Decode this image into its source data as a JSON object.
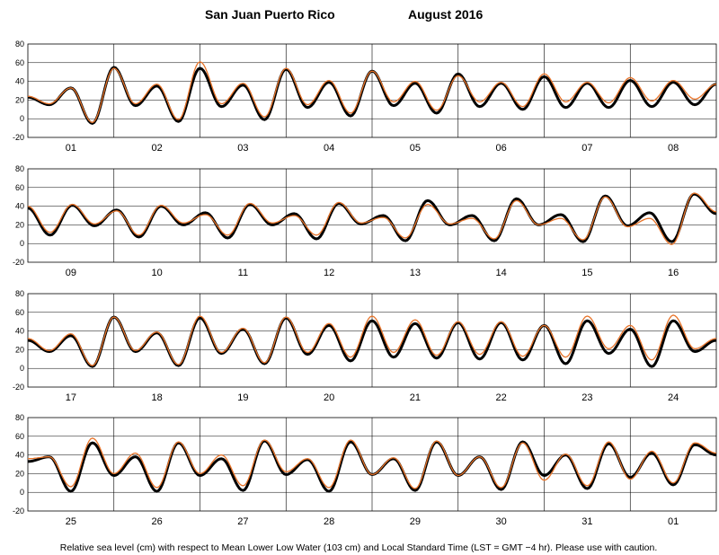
{
  "header": {
    "location": "San Juan Puerto Rico",
    "period": "August   2016"
  },
  "footer": {
    "note": "Relative sea level (cm) with respect to Mean Lower Low Water (103 cm) and Local Standard Time (LST = GMT −4 hr). Please use with caution."
  },
  "colors": {
    "observed": "#000000",
    "predicted": "#e8742a",
    "grid": "#000000"
  },
  "chart_data": [
    {
      "type": "line",
      "x_label_days": [
        "01",
        "02",
        "03",
        "04",
        "05",
        "06",
        "07",
        "08"
      ],
      "ylim": [
        -20,
        80
      ],
      "yticks": [
        -20,
        0,
        20,
        40,
        60,
        80
      ],
      "series": [
        {
          "values": [
            23,
            15,
            33,
            -5,
            55,
            14,
            35,
            -3,
            54,
            13,
            36,
            -1,
            53,
            12,
            39,
            3,
            51,
            14,
            38,
            6,
            48,
            13,
            38,
            10,
            45,
            12,
            38,
            12,
            41,
            13,
            39,
            15,
            37
          ]
        },
        {
          "values": [
            24,
            16,
            33,
            -4,
            54,
            16,
            37,
            -1,
            61,
            16,
            38,
            2,
            54,
            15,
            41,
            6,
            51,
            18,
            40,
            9,
            46,
            18,
            39,
            13,
            48,
            18,
            39,
            17,
            44,
            19,
            41,
            21,
            37
          ]
        }
      ]
    },
    {
      "type": "line",
      "x_label_days": [
        "09",
        "10",
        "11",
        "12",
        "13",
        "14",
        "15",
        "16"
      ],
      "ylim": [
        -20,
        80
      ],
      "yticks": [
        -20,
        0,
        20,
        40,
        60,
        80
      ],
      "series": [
        {
          "values": [
            38,
            9,
            41,
            19,
            36,
            7,
            40,
            20,
            33,
            6,
            42,
            20,
            32,
            5,
            43,
            21,
            30,
            3,
            46,
            20,
            30,
            3,
            48,
            20,
            31,
            2,
            51,
            19,
            33,
            2,
            53,
            32
          ]
        },
        {
          "values": [
            40,
            12,
            42,
            21,
            35,
            9,
            41,
            22,
            31,
            9,
            43,
            22,
            30,
            9,
            44,
            22,
            28,
            6,
            42,
            21,
            27,
            5,
            46,
            20,
            27,
            4,
            50,
            18,
            27,
            -1,
            54,
            34
          ]
        }
      ]
    },
    {
      "type": "line",
      "x_label_days": [
        "17",
        "18",
        "19",
        "20",
        "21",
        "22",
        "23",
        "24"
      ],
      "ylim": [
        -20,
        80
      ],
      "yticks": [
        -20,
        0,
        20,
        40,
        60,
        80
      ],
      "series": [
        {
          "values": [
            30,
            18,
            35,
            2,
            55,
            18,
            38,
            3,
            54,
            16,
            42,
            5,
            54,
            15,
            46,
            8,
            51,
            12,
            48,
            11,
            49,
            10,
            49,
            9,
            46,
            5,
            51,
            16,
            42,
            2,
            51,
            18,
            30
          ]
        },
        {
          "values": [
            32,
            19,
            37,
            3,
            55,
            19,
            39,
            4,
            56,
            17,
            43,
            6,
            55,
            17,
            48,
            12,
            56,
            17,
            52,
            14,
            50,
            15,
            50,
            13,
            46,
            12,
            56,
            21,
            46,
            9,
            57,
            21,
            32
          ]
        }
      ]
    },
    {
      "type": "line",
      "x_label_days": [
        "25",
        "26",
        "27",
        "28",
        "29",
        "30",
        "31",
        "01"
      ],
      "ylim": [
        -20,
        80
      ],
      "yticks": [
        -20,
        0,
        20,
        40,
        60,
        80
      ],
      "series": [
        {
          "values": [
            33,
            38,
            1,
            53,
            18,
            38,
            1,
            53,
            18,
            36,
            2,
            55,
            19,
            35,
            1,
            54,
            19,
            36,
            2,
            54,
            18,
            38,
            3,
            54,
            18,
            40,
            4,
            52,
            16,
            42,
            8,
            51,
            40
          ]
        },
        {
          "values": [
            36,
            38,
            6,
            58,
            20,
            42,
            5,
            54,
            20,
            40,
            7,
            56,
            22,
            36,
            5,
            56,
            19,
            37,
            4,
            55,
            18,
            38,
            5,
            53,
            13,
            41,
            7,
            54,
            14,
            44,
            10,
            53,
            42
          ]
        }
      ]
    }
  ]
}
